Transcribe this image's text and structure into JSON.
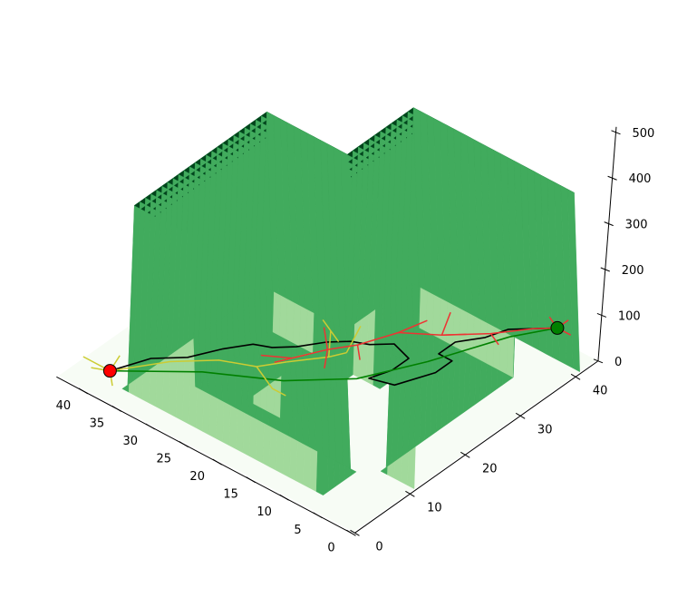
{
  "chart_data": {
    "type": "surface3d",
    "title": "",
    "x_axis": {
      "label": "",
      "ticks": [
        "0",
        "5",
        "10",
        "15",
        "20",
        "25",
        "30",
        "35",
        "40"
      ],
      "range": [
        0,
        44
      ]
    },
    "y_axis": {
      "label": "",
      "ticks": [
        "0",
        "10",
        "20",
        "30",
        "40"
      ],
      "range": [
        0,
        44
      ]
    },
    "z_axis": {
      "label": "",
      "ticks": [
        "0",
        "100",
        "200",
        "300",
        "400",
        "500"
      ],
      "range": [
        0,
        500
      ]
    },
    "grid": false,
    "floor_height": 0,
    "wall_height": 400,
    "walls": [
      {
        "x": [
          8,
          36
        ],
        "y": [
          4,
          8
        ]
      },
      {
        "x": [
          32,
          36
        ],
        "y": [
          4,
          28
        ]
      },
      {
        "x": [
          16,
          36
        ],
        "y": [
          24,
          28
        ]
      },
      {
        "x": [
          0,
          4
        ],
        "y": [
          12,
          40
        ]
      },
      {
        "x": [
          0,
          24
        ],
        "y": [
          36,
          40
        ]
      },
      {
        "x": [
          20,
          24
        ],
        "y": [
          12,
          40
        ]
      }
    ],
    "start_point": {
      "x": 38,
      "y": 2,
      "z": 0,
      "color": "#ff0000"
    },
    "goal_point": {
      "x": 5,
      "y": 43,
      "z": 0,
      "color": "#008000"
    },
    "paths": [
      {
        "role": "final-path",
        "color": "#000000",
        "points": [
          [
            38,
            2
          ],
          [
            36,
            7
          ],
          [
            33,
            10
          ],
          [
            31,
            14
          ],
          [
            29,
            17
          ],
          [
            27,
            18
          ],
          [
            25,
            20
          ],
          [
            23,
            23
          ],
          [
            21,
            25
          ],
          [
            19,
            26
          ],
          [
            17,
            28
          ],
          [
            14,
            27
          ],
          [
            14,
            24
          ],
          [
            15,
            21
          ],
          [
            12,
            22
          ],
          [
            10,
            27
          ],
          [
            10,
            30
          ],
          [
            12,
            30
          ],
          [
            12,
            33
          ],
          [
            10,
            36
          ],
          [
            9,
            39
          ],
          [
            7,
            41
          ],
          [
            5,
            43
          ]
        ]
      },
      {
        "role": "direct-path",
        "color": "#008000",
        "points": [
          [
            38,
            2
          ],
          [
            30,
            9
          ],
          [
            22,
            14
          ],
          [
            16,
            20
          ],
          [
            12,
            28
          ],
          [
            8,
            38
          ],
          [
            5,
            43
          ]
        ]
      },
      {
        "role": "start-tree",
        "color": "#cccc33",
        "segments": [
          [
            [
              38,
              2
            ],
            [
              34,
              8
            ],
            [
              30,
              12
            ],
            [
              26,
              14
            ],
            [
              24,
              17
            ]
          ],
          [
            [
              38,
              2
            ],
            [
              40,
              1
            ]
          ],
          [
            [
              38,
              2
            ],
            [
              39,
              5
            ]
          ],
          [
            [
              38,
              2
            ],
            [
              36,
              0
            ]
          ],
          [
            [
              38,
              2
            ],
            [
              42,
              2
            ]
          ],
          [
            [
              26,
              14
            ],
            [
              22,
              12
            ],
            [
              20,
              12
            ]
          ],
          [
            [
              25,
              16
            ],
            [
              23,
              20
            ]
          ],
          [
            [
              24,
              17
            ],
            [
              21,
              21
            ],
            [
              20,
              23
            ]
          ],
          [
            [
              21,
              21
            ],
            [
              24,
              25
            ]
          ],
          [
            [
              22,
              24
            ],
            [
              26,
              26
            ]
          ],
          [
            [
              20,
              23
            ],
            [
              22,
              28
            ]
          ]
        ]
      },
      {
        "role": "goal-tree",
        "color": "#ee3333",
        "segments": [
          [
            [
              5,
              43
            ],
            [
              7,
              41
            ],
            [
              10,
              37
            ],
            [
              14,
              33
            ],
            [
              18,
              30
            ],
            [
              20,
              25
            ],
            [
              22,
              22
            ],
            [
              24,
              18
            ],
            [
              27,
              16
            ]
          ],
          [
            [
              5,
              43
            ],
            [
              3,
              43
            ]
          ],
          [
            [
              5,
              43
            ],
            [
              5,
              45
            ]
          ],
          [
            [
              5,
              43
            ],
            [
              7,
              44
            ]
          ],
          [
            [
              10,
              37
            ],
            [
              8,
              36
            ]
          ],
          [
            [
              14,
              33
            ],
            [
              12,
              35
            ]
          ],
          [
            [
              18,
              30
            ],
            [
              17,
              34
            ]
          ],
          [
            [
              14,
              33
            ],
            [
              16,
              37
            ]
          ],
          [
            [
              20,
              25
            ],
            [
              18,
              23
            ]
          ],
          [
            [
              22,
              22
            ],
            [
              25,
              25
            ]
          ],
          [
            [
              24,
              18
            ],
            [
              25,
              16
            ]
          ],
          [
            [
              22,
              22
            ],
            [
              20,
              19
            ]
          ]
        ]
      }
    ],
    "colors": {
      "wall_top": "#00441b",
      "wall_side_light": "#a1d99b",
      "wall_side_mid": "#41ab5d",
      "floor": "#f7fcf5",
      "grid_line": "#0b5a2b"
    }
  }
}
